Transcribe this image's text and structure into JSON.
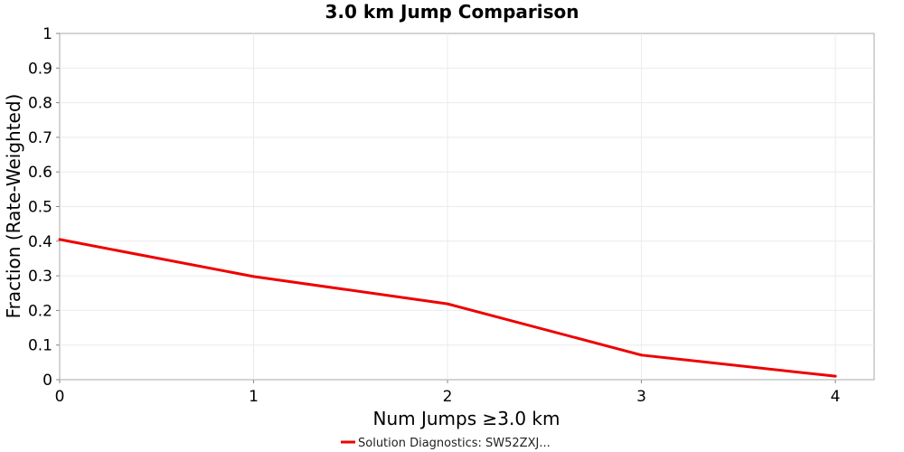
{
  "chart_data": {
    "type": "line",
    "title": "3.0 km Jump Comparison",
    "xlabel": "Num Jumps ≥3.0 km",
    "ylabel": "Fraction (Rate-Weighted)",
    "x": [
      0,
      1,
      2,
      3,
      4
    ],
    "xlim": [
      0,
      4.2
    ],
    "ylim": [
      0,
      1
    ],
    "xticks": [
      0,
      1,
      2,
      3,
      4
    ],
    "yticks": [
      0,
      0.1,
      0.2,
      0.3,
      0.4,
      0.5,
      0.6,
      0.7,
      0.8,
      0.9,
      1
    ],
    "grid": true,
    "legend_position": "bottom-center",
    "series": [
      {
        "name": "Solution Diagnostics: SW52ZXJ...",
        "color": "#ee0000",
        "values": [
          0.405,
          0.298,
          0.219,
          0.071,
          0.01
        ]
      }
    ]
  }
}
